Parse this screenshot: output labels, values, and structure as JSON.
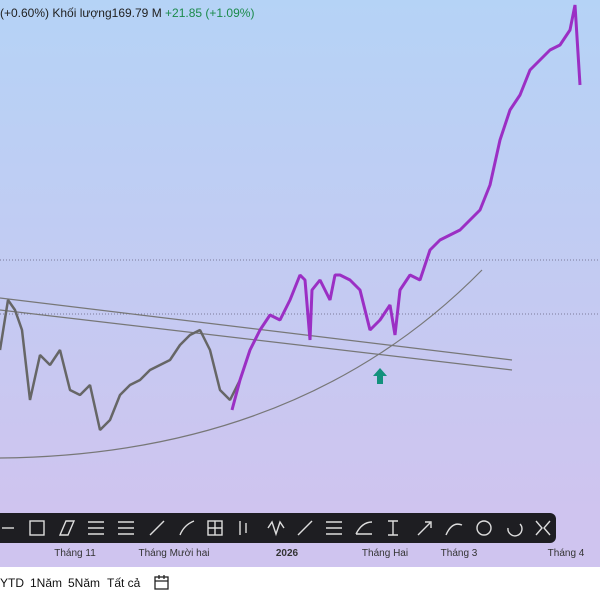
{
  "header": {
    "change_pct": "(+0.60%)",
    "volume_label": "Khối lượng",
    "volume": "169.79 M",
    "volume_change": "+21.85 (+1.09%)"
  },
  "x_axis": [
    "Tháng 11",
    "Tháng Mười hai",
    "2026",
    "Tháng Hai",
    "Tháng 3",
    "Tháng 4"
  ],
  "ranges": [
    "YTD",
    "1Năm",
    "5Năm",
    "Tất cả"
  ]
}
